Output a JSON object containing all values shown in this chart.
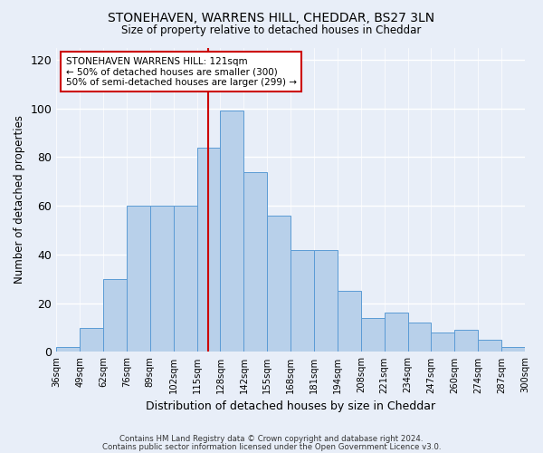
{
  "title1": "STONEHAVEN, WARRENS HILL, CHEDDAR, BS27 3LN",
  "title2": "Size of property relative to detached houses in Cheddar",
  "xlabel": "Distribution of detached houses by size in Cheddar",
  "ylabel": "Number of detached properties",
  "bar_heights": [
    2,
    10,
    30,
    60,
    60,
    60,
    84,
    99,
    74,
    56,
    42,
    42,
    25,
    14,
    16,
    12,
    8,
    9,
    5,
    2
  ],
  "tick_labels": [
    "36sqm",
    "49sqm",
    "62sqm",
    "76sqm",
    "89sqm",
    "102sqm",
    "115sqm",
    "128sqm",
    "142sqm",
    "155sqm",
    "168sqm",
    "181sqm",
    "194sqm",
    "208sqm",
    "221sqm",
    "234sqm",
    "247sqm",
    "260sqm",
    "274sqm",
    "287sqm",
    "300sqm"
  ],
  "bar_color": "#b8d0ea",
  "bar_edge_color": "#5b9bd5",
  "vline_color": "#cc0000",
  "annotation_text": "STONEHAVEN WARRENS HILL: 121sqm\n← 50% of detached houses are smaller (300)\n50% of semi-detached houses are larger (299) →",
  "annotation_box_color": "white",
  "annotation_box_edge_color": "#cc0000",
  "ylim": [
    0,
    125
  ],
  "yticks": [
    0,
    20,
    40,
    60,
    80,
    100,
    120
  ],
  "footer1": "Contains HM Land Registry data © Crown copyright and database right 2024.",
  "footer2": "Contains public sector information licensed under the Open Government Licence v3.0.",
  "bg_color": "#e8eef8",
  "plot_bg_color": "#e8eef8"
}
